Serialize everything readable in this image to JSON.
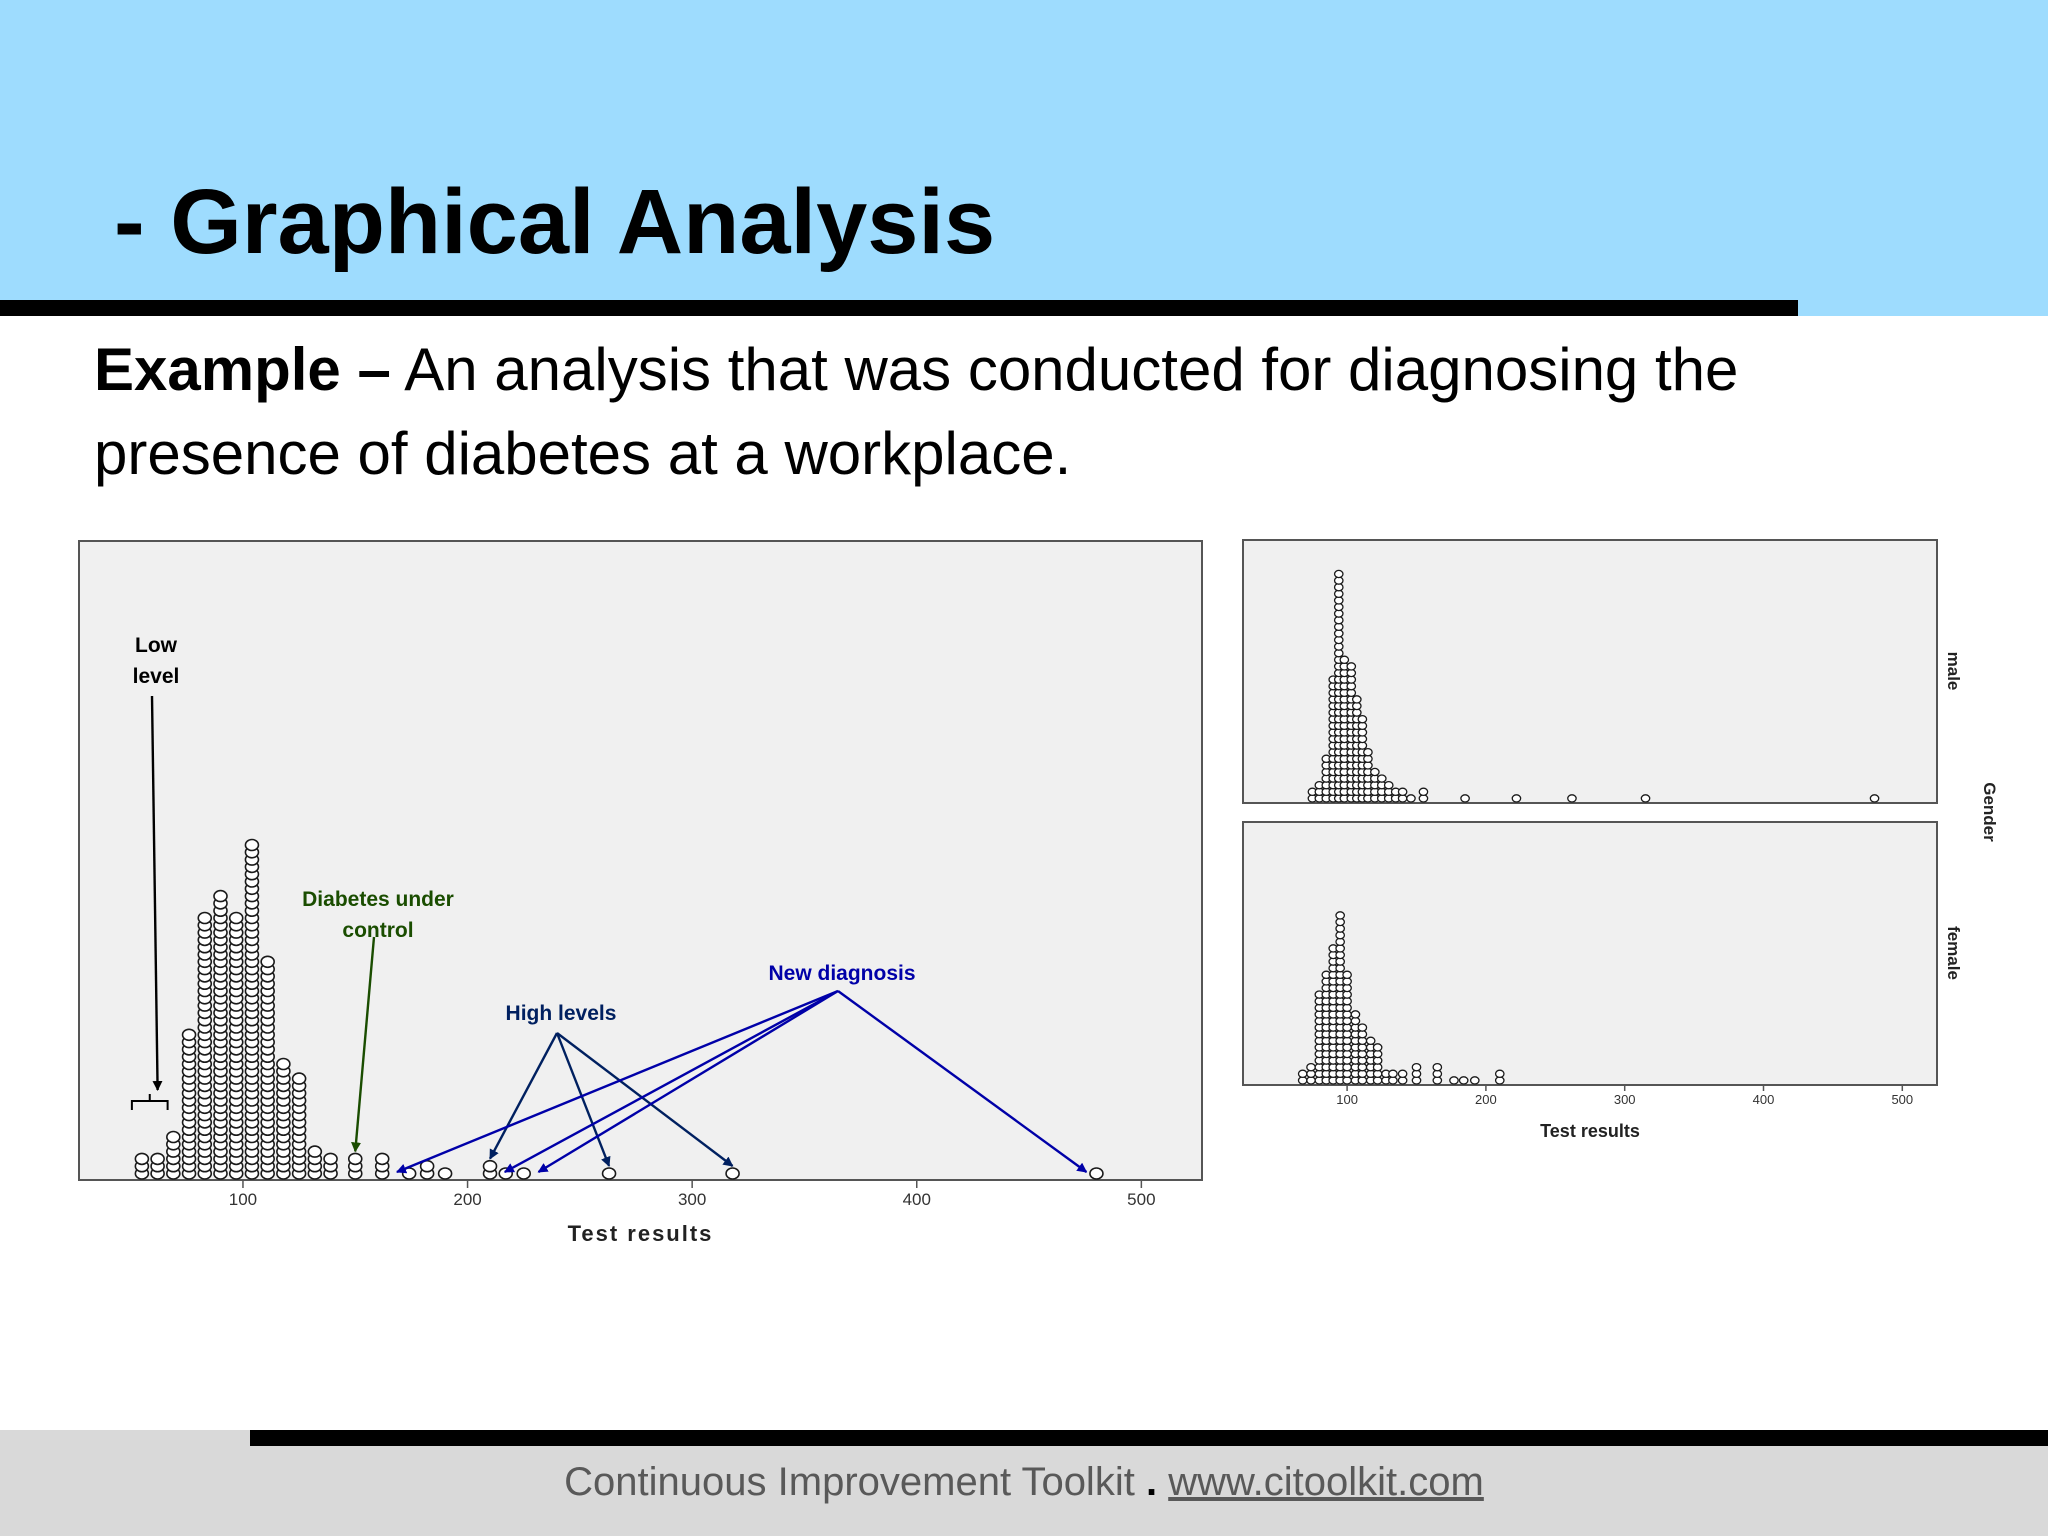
{
  "slide": {
    "title": "- Graphical Analysis",
    "example_label": "Example –",
    "example_text": "An analysis that was conducted for diagnosing the presence of diabetes at a workplace."
  },
  "footer": {
    "brand": "Continuous Improvement Toolkit",
    "separator": ".",
    "url": "www.citoolkit.com"
  },
  "chart_data": [
    {
      "type": "scatter",
      "subtype": "dot-plot",
      "xlabel": "Test results",
      "xlim": [
        27,
        527
      ],
      "xticks": [
        100,
        200,
        300,
        400,
        500
      ],
      "grid": false,
      "annotations": [
        {
          "text_lines": [
            "Low",
            "level"
          ],
          "color": "#000000",
          "targets": [
            62
          ]
        },
        {
          "text_lines": [
            "Diabetes under",
            "control"
          ],
          "color": "#1a4d00",
          "targets": [
            150
          ]
        },
        {
          "text_lines": [
            "High levels"
          ],
          "color": "#002060",
          "targets": [
            210,
            263,
            318
          ]
        },
        {
          "text_lines": [
            "New diagnosis"
          ],
          "color": "#0000a8",
          "targets": [
            165,
            213,
            228,
            480
          ]
        }
      ],
      "stacks": [
        {
          "x": 55,
          "n": 3
        },
        {
          "x": 62,
          "n": 3
        },
        {
          "x": 69,
          "n": 6
        },
        {
          "x": 76,
          "n": 20
        },
        {
          "x": 83,
          "n": 36
        },
        {
          "x": 90,
          "n": 39
        },
        {
          "x": 97,
          "n": 36
        },
        {
          "x": 104,
          "n": 46
        },
        {
          "x": 111,
          "n": 30
        },
        {
          "x": 118,
          "n": 16
        },
        {
          "x": 125,
          "n": 14
        },
        {
          "x": 132,
          "n": 4
        },
        {
          "x": 139,
          "n": 3
        },
        {
          "x": 150,
          "n": 3
        },
        {
          "x": 162,
          "n": 3
        },
        {
          "x": 174,
          "n": 1
        },
        {
          "x": 182,
          "n": 2
        },
        {
          "x": 190,
          "n": 1
        },
        {
          "x": 210,
          "n": 2
        },
        {
          "x": 217,
          "n": 1
        },
        {
          "x": 225,
          "n": 1
        },
        {
          "x": 263,
          "n": 1
        },
        {
          "x": 318,
          "n": 1
        },
        {
          "x": 480,
          "n": 1
        }
      ]
    },
    {
      "type": "scatter",
      "subtype": "dot-plot-panel",
      "panel_label": "male",
      "group_label": "Gender",
      "xlim": [
        25,
        525
      ],
      "stacks": [
        {
          "x": 75,
          "n": 2
        },
        {
          "x": 80,
          "n": 3
        },
        {
          "x": 85,
          "n": 7
        },
        {
          "x": 90,
          "n": 19
        },
        {
          "x": 94,
          "n": 35
        },
        {
          "x": 98,
          "n": 22
        },
        {
          "x": 103,
          "n": 21
        },
        {
          "x": 107,
          "n": 16
        },
        {
          "x": 111,
          "n": 13
        },
        {
          "x": 115,
          "n": 8
        },
        {
          "x": 120,
          "n": 5
        },
        {
          "x": 125,
          "n": 4
        },
        {
          "x": 130,
          "n": 3
        },
        {
          "x": 135,
          "n": 2
        },
        {
          "x": 140,
          "n": 2
        },
        {
          "x": 146,
          "n": 1
        },
        {
          "x": 155,
          "n": 2
        },
        {
          "x": 185,
          "n": 1
        },
        {
          "x": 222,
          "n": 1
        },
        {
          "x": 262,
          "n": 1
        },
        {
          "x": 315,
          "n": 1
        },
        {
          "x": 480,
          "n": 1
        }
      ]
    },
    {
      "type": "scatter",
      "subtype": "dot-plot-panel",
      "panel_label": "female",
      "xlabel": "Test results",
      "xlim": [
        25,
        525
      ],
      "xticks": [
        100,
        200,
        300,
        400,
        500
      ],
      "stacks": [
        {
          "x": 68,
          "n": 2
        },
        {
          "x": 74,
          "n": 3
        },
        {
          "x": 80,
          "n": 14
        },
        {
          "x": 85,
          "n": 17
        },
        {
          "x": 90,
          "n": 21
        },
        {
          "x": 95,
          "n": 26
        },
        {
          "x": 100,
          "n": 17
        },
        {
          "x": 106,
          "n": 11
        },
        {
          "x": 111,
          "n": 9
        },
        {
          "x": 117,
          "n": 7
        },
        {
          "x": 122,
          "n": 6
        },
        {
          "x": 128,
          "n": 2
        },
        {
          "x": 133,
          "n": 2
        },
        {
          "x": 140,
          "n": 2
        },
        {
          "x": 150,
          "n": 3
        },
        {
          "x": 165,
          "n": 3
        },
        {
          "x": 177,
          "n": 1
        },
        {
          "x": 184,
          "n": 1
        },
        {
          "x": 192,
          "n": 1
        },
        {
          "x": 210,
          "n": 2
        }
      ]
    }
  ]
}
